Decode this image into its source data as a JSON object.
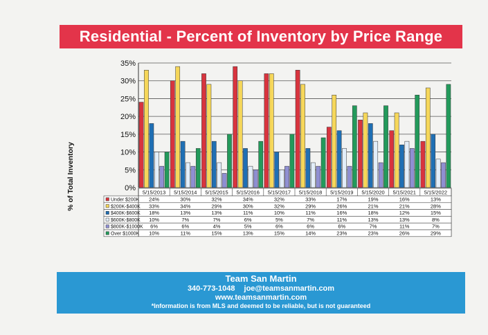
{
  "title": "Residential - Percent of Inventory by Price Range",
  "ylabel": "% of Total Inventory",
  "footer": {
    "name": "Team San Martin",
    "phone": "340-773-1048",
    "email": "joe@teamsanmartin.com",
    "website": "www.teamsanmartin.com",
    "disclaimer": "*Information is from MLS and deemed to be reliable, but is not guaranteed"
  },
  "chart_data": {
    "type": "bar",
    "categories": [
      "5/15/2013",
      "5/15/2014",
      "5/15/2015",
      "5/15/2016",
      "5/15/2017",
      "5/15/2018",
      "5/15/2019",
      "5/15/2020",
      "5/15/2021",
      "5/15/2022"
    ],
    "ylim": [
      0,
      35
    ],
    "yticks": [
      "0%",
      "5%",
      "10%",
      "15%",
      "20%",
      "25%",
      "30%",
      "35%"
    ],
    "grid": true,
    "series": [
      {
        "name": "Under $200K",
        "color": "#d8343e",
        "values": [
          24,
          30,
          32,
          34,
          32,
          33,
          17,
          19,
          16,
          13
        ],
        "labels": [
          "24%",
          "30%",
          "32%",
          "34%",
          "32%",
          "33%",
          "17%",
          "19%",
          "16%",
          "13%"
        ]
      },
      {
        "name": "$200K-$400K",
        "color": "#f6d75a",
        "values": [
          33,
          34,
          29,
          30,
          32,
          29,
          26,
          21,
          21,
          28
        ],
        "labels": [
          "33%",
          "34%",
          "29%",
          "30%",
          "32%",
          "29%",
          "26%",
          "21%",
          "21%",
          "28%"
        ]
      },
      {
        "name": "$400K-$600K",
        "color": "#1f6fb4",
        "values": [
          18,
          13,
          13,
          11,
          10,
          11,
          16,
          18,
          12,
          15
        ],
        "labels": [
          "18%",
          "13%",
          "13%",
          "11%",
          "10%",
          "11%",
          "16%",
          "18%",
          "12%",
          "15%"
        ]
      },
      {
        "name": "$600K-$800K",
        "color": "#e3eef9",
        "values": [
          10,
          7,
          7,
          6,
          5,
          7,
          11,
          13,
          13,
          8
        ],
        "labels": [
          "10%",
          "7%",
          "7%",
          "6%",
          "5%",
          "7%",
          "11%",
          "13%",
          "13%",
          "8%"
        ]
      },
      {
        "name": "$800K-$1000K",
        "color": "#8f8fd2",
        "values": [
          6,
          6,
          4,
          5,
          6,
          6,
          6,
          7,
          11,
          7
        ],
        "labels": [
          "6%",
          "6%",
          "4%",
          "5%",
          "6%",
          "6%",
          "6%",
          "7%",
          "11%",
          "7%"
        ]
      },
      {
        "name": "Over $1000K",
        "color": "#239a5b",
        "values": [
          10,
          11,
          15,
          13,
          15,
          14,
          23,
          23,
          26,
          29
        ],
        "labels": [
          "10%",
          "11%",
          "15%",
          "13%",
          "15%",
          "14%",
          "23%",
          "23%",
          "26%",
          "29%"
        ]
      }
    ]
  }
}
